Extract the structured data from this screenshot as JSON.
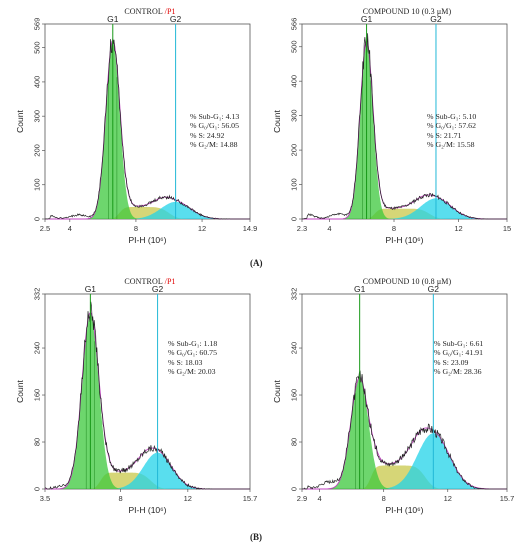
{
  "labels": {
    "a": "(A)",
    "b": "(B)"
  },
  "chart_data": [
    {
      "type": "area",
      "title_main": "CONTROL",
      "title_suffix": "/P1",
      "xlabel": "PI-H (10⁶)",
      "ylabel": "Count",
      "xlim": [
        2.5,
        14.9
      ],
      "ylim": [
        0,
        569
      ],
      "xticks": [
        "2.5",
        "4",
        "8",
        "12",
        "14.9"
      ],
      "yticks": [
        "0",
        "100",
        "200",
        "300",
        "400",
        "500",
        "569"
      ],
      "markers": [
        {
          "name": "G1",
          "x": 6.6
        },
        {
          "name": "G2",
          "x": 10.4
        }
      ],
      "stats": [
        "% Sub-G₁: 4.13",
        "% G₀/G₁: 56.05",
        "% S: 24.92",
        "% G₂/M: 14.88"
      ],
      "g1": {
        "center": 6.6,
        "sigma": 0.42,
        "height": 520
      },
      "g2": {
        "center": 10.4,
        "sigma": 0.9,
        "height": 50
      },
      "s_phase": {
        "start": 7.0,
        "end": 10.0,
        "level": 35
      },
      "subg1": 12
    },
    {
      "type": "area",
      "title_main": "COMPOUND 10 (0.3 μM)",
      "title_suffix": "",
      "xlabel": "PI-H (10⁶)",
      "ylabel": "Count",
      "xlim": [
        2.3,
        15
      ],
      "ylim": [
        0,
        566
      ],
      "xticks": [
        "2.3",
        "4",
        "8",
        "12",
        "15"
      ],
      "yticks": [
        "0",
        "100",
        "200",
        "300",
        "400",
        "500",
        "566"
      ],
      "markers": [
        {
          "name": "G1",
          "x": 6.3
        },
        {
          "name": "G2",
          "x": 10.6
        }
      ],
      "stats": [
        "% Sub-G₁: 5.10",
        "% G₀/G₁: 57.62",
        "% S: 21.71",
        "% G₂/M: 15.58"
      ],
      "g1": {
        "center": 6.3,
        "sigma": 0.4,
        "height": 515
      },
      "g2": {
        "center": 10.6,
        "sigma": 0.95,
        "height": 60
      },
      "s_phase": {
        "start": 6.8,
        "end": 10.2,
        "level": 30
      },
      "subg1": 14
    },
    {
      "type": "area",
      "title_main": "CONTROL",
      "title_suffix": "/P1",
      "xlabel": "PI-H (10⁶)",
      "ylabel": "Count",
      "xlim": [
        3.5,
        15.7
      ],
      "ylim": [
        0,
        332
      ],
      "xticks": [
        "3.5",
        "8",
        "12",
        "15.7"
      ],
      "yticks": [
        "0",
        "80",
        "160",
        "240",
        "332"
      ],
      "markers": [
        {
          "name": "G1",
          "x": 6.2
        },
        {
          "name": "G2",
          "x": 10.2
        }
      ],
      "stats": [
        "% Sub-G₁: 1.18",
        "% G₀/G₁: 60.75",
        "% S: 18.03",
        "% G₂/M: 20.03"
      ],
      "g1": {
        "center": 6.2,
        "sigma": 0.5,
        "height": 300
      },
      "g2": {
        "center": 10.2,
        "sigma": 0.85,
        "height": 62
      },
      "s_phase": {
        "start": 6.8,
        "end": 9.8,
        "level": 28
      },
      "subg1": 4
    },
    {
      "type": "area",
      "title_main": "COMPOUND 10 (0.8 μM)",
      "title_suffix": "",
      "xlabel": "PI-H (10⁶)",
      "ylabel": "Count",
      "xlim": [
        2.9,
        15.7
      ],
      "ylim": [
        0,
        332
      ],
      "xticks": [
        "2.9",
        "4",
        "8",
        "12",
        "15.7"
      ],
      "yticks": [
        "0",
        "80",
        "160",
        "240",
        "332"
      ],
      "markers": [
        {
          "name": "G1",
          "x": 6.5
        },
        {
          "name": "G2",
          "x": 11.1
        }
      ],
      "stats": [
        "% Sub-G₁: 6.61",
        "% G₀/G₁: 41.91",
        "% S: 23.09",
        "% G₂/M: 28.36"
      ],
      "g1": {
        "center": 6.5,
        "sigma": 0.55,
        "height": 190
      },
      "g2": {
        "center": 11.1,
        "sigma": 1.0,
        "height": 95
      },
      "s_phase": {
        "start": 7.2,
        "end": 10.6,
        "level": 40
      },
      "subg1": 12
    }
  ]
}
